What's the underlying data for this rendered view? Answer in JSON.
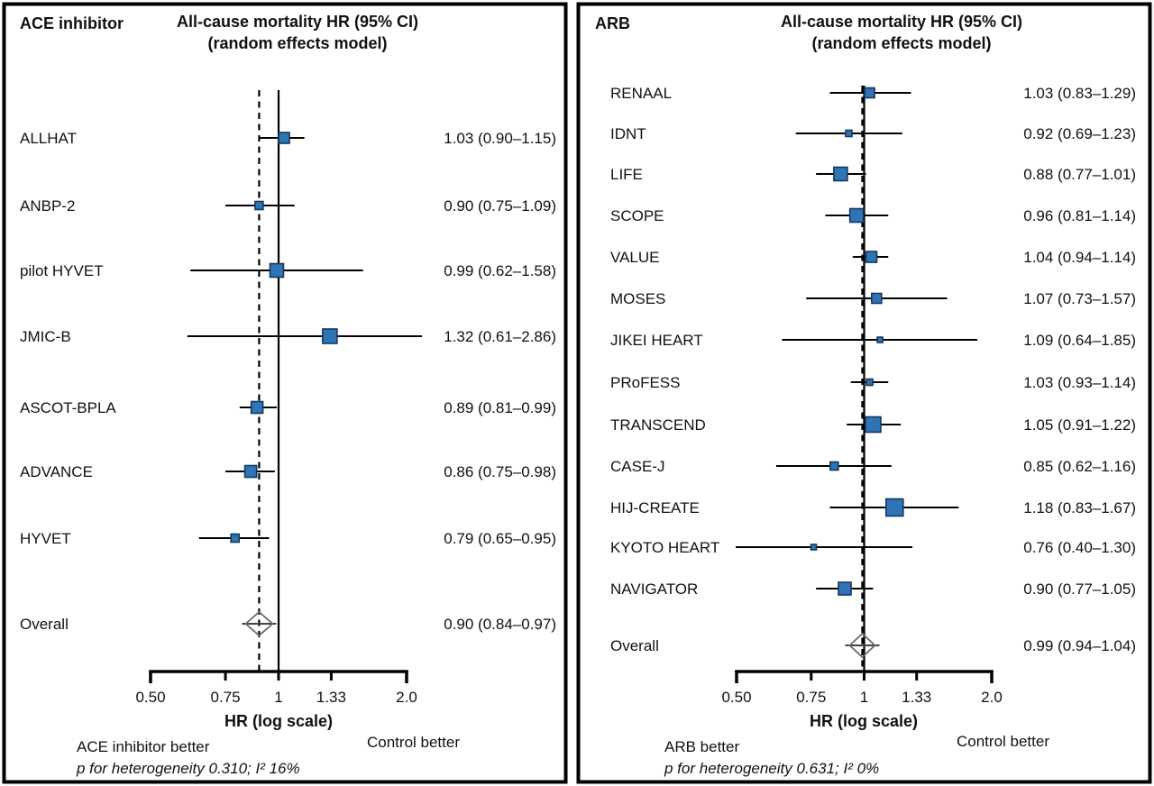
{
  "colors": {
    "marker_fill": "#2E75B6",
    "marker_border": "#17375D",
    "diamond_border": "#6B6B6B"
  },
  "panels": [
    {
      "treatment_label": "ACE inhibitor",
      "title_line1": "All-cause mortality HR (95% CI)",
      "title_line2": "(random effects model)",
      "xlabel": "HR (log scale)",
      "left_better_label": "ACE inhibitor better",
      "right_better_label": "Control better",
      "heterogeneity_note": "p for heterogeneity 0.310; I² 16%"
    },
    {
      "treatment_label": "ARB",
      "title_line1": "All-cause mortality HR (95% CI)",
      "title_line2": "(random effects model)",
      "xlabel": "HR (log scale)",
      "left_better_label": "ARB better",
      "right_better_label": "Control better",
      "heterogeneity_note": "p for heterogeneity 0.631; I² 0%"
    }
  ],
  "chart_data": [
    {
      "type": "forest",
      "group": "ACE inhibitor",
      "title": "All-cause mortality HR (95% CI) (random effects model)",
      "x_axis": {
        "label": "HR (log scale)",
        "scale": "log",
        "range": [
          0.5,
          2.0
        ],
        "ticks": [
          0.5,
          0.75,
          1,
          1.33,
          2.0
        ],
        "tick_labels": [
          "0.50",
          "0.75",
          "1",
          "1.33",
          "2.0"
        ]
      },
      "reference_line": 1.0,
      "studies": [
        {
          "label": "ALLHAT",
          "hr": 1.03,
          "ci_low": 0.9,
          "ci_high": 1.15,
          "text": "1.03 (0.90–1.15)",
          "size": 12
        },
        {
          "label": "ANBP-2",
          "hr": 0.9,
          "ci_low": 0.75,
          "ci_high": 1.09,
          "text": "0.90 (0.75–1.09)",
          "size": 9
        },
        {
          "label": "pilot HYVET",
          "hr": 0.99,
          "ci_low": 0.62,
          "ci_high": 1.58,
          "text": "0.99 (0.62–1.58)",
          "size": 15
        },
        {
          "label": "JMIC-B",
          "hr": 1.32,
          "ci_low": 0.61,
          "ci_high": 2.86,
          "text": "1.32 (0.61–2.86)",
          "size": 16
        },
        {
          "label": "ASCOT-BPLA",
          "hr": 0.89,
          "ci_low": 0.81,
          "ci_high": 0.99,
          "text": "0.89 (0.81–0.99)",
          "size": 13
        },
        {
          "label": "ADVANCE",
          "hr": 0.86,
          "ci_low": 0.75,
          "ci_high": 0.98,
          "text": "0.86 (0.75–0.98)",
          "size": 13
        },
        {
          "label": "HYVET",
          "hr": 0.79,
          "ci_low": 0.65,
          "ci_high": 0.95,
          "text": "0.79 (0.65–0.95)",
          "size": 9
        }
      ],
      "overall": {
        "label": "Overall",
        "hr": 0.9,
        "ci_low": 0.84,
        "ci_high": 0.97,
        "text": "0.90 (0.84–0.97)"
      },
      "heterogeneity": "p for heterogeneity 0.310; I² 16%"
    },
    {
      "type": "forest",
      "group": "ARB",
      "title": "All-cause mortality HR (95% CI) (random effects model)",
      "x_axis": {
        "label": "HR (log scale)",
        "scale": "log",
        "range": [
          0.5,
          2.0
        ],
        "ticks": [
          0.5,
          0.75,
          1,
          1.33,
          2.0
        ],
        "tick_labels": [
          "0.50",
          "0.75",
          "1",
          "1.33",
          "2.0"
        ]
      },
      "reference_line": 1.0,
      "studies": [
        {
          "label": "RENAAL",
          "hr": 1.03,
          "ci_low": 0.83,
          "ci_high": 1.29,
          "text": "1.03 (0.83–1.29)",
          "size": 11
        },
        {
          "label": "IDNT",
          "hr": 0.92,
          "ci_low": 0.69,
          "ci_high": 1.23,
          "text": "0.92 (0.69–1.23)",
          "size": 7
        },
        {
          "label": "LIFE",
          "hr": 0.88,
          "ci_low": 0.77,
          "ci_high": 1.01,
          "text": "0.88 (0.77–1.01)",
          "size": 15
        },
        {
          "label": "SCOPE",
          "hr": 0.96,
          "ci_low": 0.81,
          "ci_high": 1.14,
          "text": "0.96 (0.81–1.14)",
          "size": 15
        },
        {
          "label": "VALUE",
          "hr": 1.04,
          "ci_low": 0.94,
          "ci_high": 1.14,
          "text": "1.04 (0.94–1.14)",
          "size": 12
        },
        {
          "label": "MOSES",
          "hr": 1.07,
          "ci_low": 0.73,
          "ci_high": 1.57,
          "text": "1.07 (0.73–1.57)",
          "size": 11
        },
        {
          "label": "JIKEI HEART",
          "hr": 1.09,
          "ci_low": 0.64,
          "ci_high": 1.85,
          "text": "1.09 (0.64–1.85)",
          "size": 6
        },
        {
          "label": "PRoFESS",
          "hr": 1.03,
          "ci_low": 0.93,
          "ci_high": 1.14,
          "text": "1.03 (0.93–1.14)",
          "size": 7
        },
        {
          "label": "TRANSCEND",
          "hr": 1.05,
          "ci_low": 0.91,
          "ci_high": 1.22,
          "text": "1.05 (0.91–1.22)",
          "size": 17
        },
        {
          "label": "CASE-J",
          "hr": 0.85,
          "ci_low": 0.62,
          "ci_high": 1.16,
          "text": "0.85 (0.62–1.16)",
          "size": 9
        },
        {
          "label": "HIJ-CREATE",
          "hr": 1.18,
          "ci_low": 0.83,
          "ci_high": 1.67,
          "text": "1.18 (0.83–1.67)",
          "size": 19
        },
        {
          "label": "KYOTO HEART",
          "hr": 0.76,
          "ci_low": 0.4,
          "ci_high": 1.3,
          "text": "0.76 (0.40–1.30)",
          "size": 6
        },
        {
          "label": "NAVIGATOR",
          "hr": 0.9,
          "ci_low": 0.77,
          "ci_high": 1.05,
          "text": "0.90 (0.77–1.05)",
          "size": 14
        }
      ],
      "overall": {
        "label": "Overall",
        "hr": 0.99,
        "ci_low": 0.94,
        "ci_high": 1.04,
        "text": "0.99 (0.94–1.04)"
      },
      "heterogeneity": "p for heterogeneity 0.631; I² 0%"
    }
  ]
}
